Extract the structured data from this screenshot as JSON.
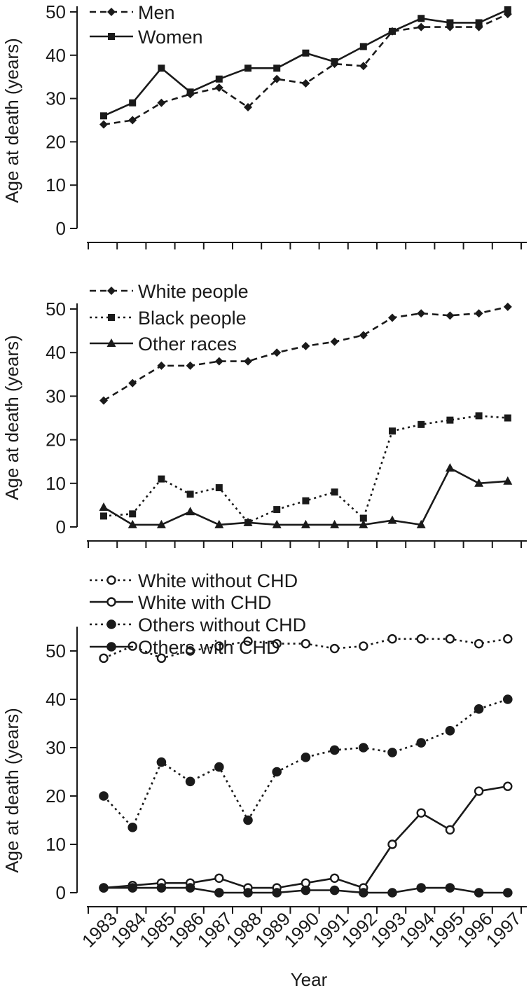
{
  "x_axis": {
    "label": "Year",
    "years": [
      "1983",
      "1984",
      "1985",
      "1986",
      "1987",
      "1988",
      "1989",
      "1990",
      "1991",
      "1992",
      "1993",
      "1994",
      "1995",
      "1996",
      "1997"
    ]
  },
  "chart_data": [
    {
      "type": "line",
      "xlabel": "",
      "ylabel": "Age at death (years)",
      "ylim": [
        0,
        50
      ],
      "yticks": [
        0,
        10,
        20,
        30,
        40,
        50
      ],
      "x": [
        1983,
        1984,
        1985,
        1986,
        1987,
        1988,
        1989,
        1990,
        1991,
        1992,
        1993,
        1994,
        1995,
        1996,
        1997
      ],
      "grid": false,
      "legend": "top-left",
      "series": [
        {
          "name": "Men",
          "line": "dashed",
          "marker": "diamond",
          "values": [
            24,
            25,
            29,
            31,
            32.5,
            28,
            34.5,
            33.5,
            38,
            37.5,
            45.5,
            46.5,
            46.5,
            46.5,
            49.5
          ]
        },
        {
          "name": "Women",
          "line": "solid",
          "marker": "square",
          "values": [
            26,
            29,
            37,
            31.5,
            34.5,
            37,
            37,
            40.5,
            38.5,
            42,
            45.5,
            48.5,
            47.5,
            47.5,
            50.5
          ]
        }
      ]
    },
    {
      "type": "line",
      "xlabel": "",
      "ylabel": "Age at death (years)",
      "ylim": [
        0,
        50
      ],
      "yticks": [
        0,
        10,
        20,
        30,
        40,
        50
      ],
      "x": [
        1983,
        1984,
        1985,
        1986,
        1987,
        1988,
        1989,
        1990,
        1991,
        1992,
        1993,
        1994,
        1995,
        1996,
        1997
      ],
      "grid": false,
      "legend": "top-left",
      "series": [
        {
          "name": "White people",
          "line": "dashed",
          "marker": "diamond",
          "values": [
            29,
            33,
            37,
            37,
            38,
            38,
            40,
            41.5,
            42.5,
            44,
            48,
            49,
            48.5,
            49,
            50.5
          ]
        },
        {
          "name": "Black people",
          "line": "dotted",
          "marker": "square",
          "values": [
            2.5,
            3,
            11,
            7.5,
            9,
            1,
            4,
            6,
            8,
            2,
            22,
            23.5,
            24.5,
            25.5,
            25
          ]
        },
        {
          "name": "Other races",
          "line": "solid",
          "marker": "triangle",
          "values": [
            4.5,
            0.5,
            0.5,
            3.5,
            0.5,
            1,
            0.5,
            0.5,
            0.5,
            0.5,
            1.5,
            0.5,
            13.5,
            10,
            10.5
          ]
        }
      ]
    },
    {
      "type": "line",
      "xlabel": "Year",
      "ylabel": "Age at death (years)",
      "ylim": [
        0,
        55
      ],
      "yticks": [
        0,
        10,
        20,
        30,
        40,
        50
      ],
      "x": [
        1983,
        1984,
        1985,
        1986,
        1987,
        1988,
        1989,
        1990,
        1991,
        1992,
        1993,
        1994,
        1995,
        1996,
        1997
      ],
      "grid": false,
      "legend": "top-left",
      "series": [
        {
          "name": "White without CHD",
          "line": "dotted",
          "marker": "open-circle",
          "values": [
            48.5,
            51,
            48.5,
            50,
            51,
            52,
            51.5,
            51.5,
            50.5,
            51,
            52.5,
            52.5,
            52.5,
            51.5,
            52.5
          ]
        },
        {
          "name": "White with CHD",
          "line": "solid",
          "marker": "open-circle",
          "values": [
            1,
            1.5,
            2,
            2,
            3,
            1,
            1,
            2,
            3,
            1,
            10,
            16.5,
            13,
            21,
            22
          ]
        },
        {
          "name": "Others without CHD",
          "line": "dotted",
          "marker": "filled-circle",
          "values": [
            20,
            13.5,
            27,
            23,
            26,
            15,
            25,
            28,
            29.5,
            30,
            29,
            31,
            33.5,
            38,
            40
          ]
        },
        {
          "name": "Others with CHD",
          "line": "solid",
          "marker": "filled-circle",
          "values": [
            1,
            1,
            1,
            1,
            0,
            0,
            0,
            0.5,
            0.5,
            0,
            0,
            1,
            1,
            0,
            0
          ]
        }
      ]
    }
  ]
}
